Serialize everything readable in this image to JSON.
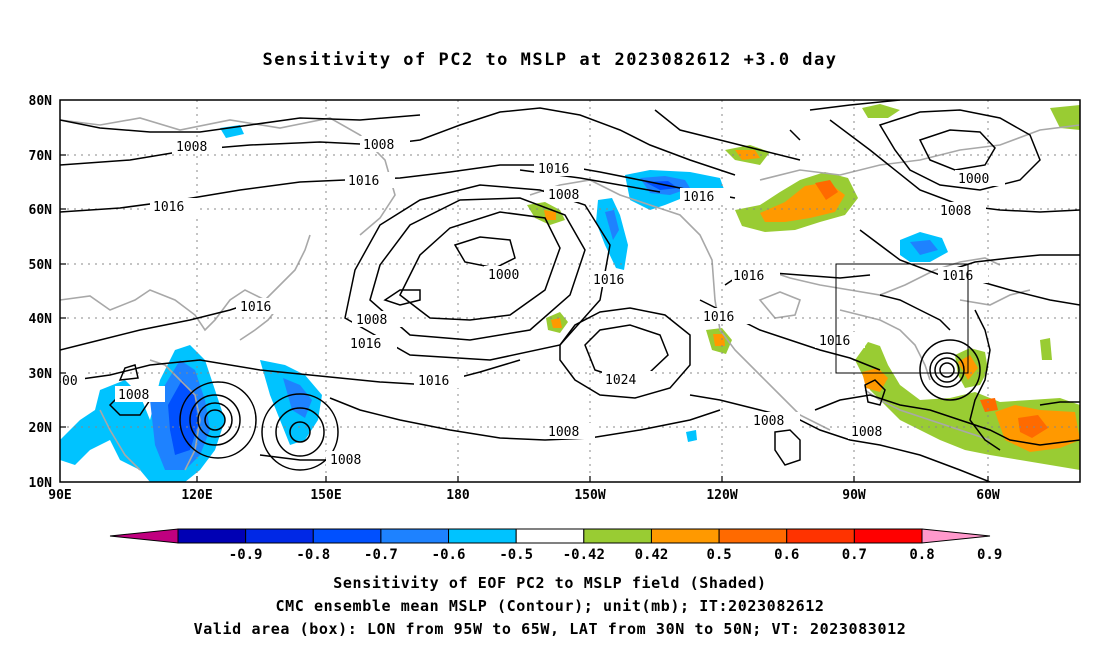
{
  "title": "Sensitivity of PC2 to MSLP at 2023082612 +3.0 day",
  "lat_ticks": [
    "80N",
    "70N",
    "60N",
    "50N",
    "40N",
    "30N",
    "20N",
    "10N"
  ],
  "lon_ticks": [
    "90E",
    "120E",
    "150E",
    "180",
    "150W",
    "120W",
    "90W",
    "60W"
  ],
  "colorbar": {
    "labels": [
      "-0.9",
      "-0.8",
      "-0.7",
      "-0.6",
      "-0.5",
      "-0.42",
      "0.42",
      "0.5",
      "0.6",
      "0.7",
      "0.8",
      "0.9"
    ],
    "colors": [
      "#c0007f",
      "#0000b4",
      "#0028e6",
      "#0050ff",
      "#1e82ff",
      "#00c3ff",
      "#ffffff",
      "#99cc33",
      "#ff9900",
      "#ff6a00",
      "#ff3300",
      "#ff0000",
      "#ff99cc"
    ]
  },
  "contour_labels": [
    {
      "text": "1008"
    },
    {
      "text": "1008"
    },
    {
      "text": "1016"
    },
    {
      "text": "1016"
    },
    {
      "text": "1016"
    },
    {
      "text": "1008"
    },
    {
      "text": "1016"
    },
    {
      "text": "1000"
    },
    {
      "text": "1008"
    },
    {
      "text": "1016"
    },
    {
      "text": "1008"
    },
    {
      "text": "1016"
    },
    {
      "text": "1016"
    },
    {
      "text": "1016"
    },
    {
      "text": "1000"
    },
    {
      "text": "1008"
    },
    {
      "text": "1016"
    },
    {
      "text": "1016"
    },
    {
      "text": "1024"
    },
    {
      "text": "1016"
    },
    {
      "text": "1008"
    },
    {
      "text": "1008"
    },
    {
      "text": "1008"
    },
    {
      "text": "1016"
    },
    {
      "text": "1008"
    },
    {
      "text": "00"
    }
  ],
  "valid_box": {
    "lon_from": "95W",
    "lon_to": "65W",
    "lat_from": "30N",
    "lat_to": "50N"
  },
  "captions": [
    "Sensitivity of EOF PC2 to MSLP field (Shaded)",
    "CMC ensemble mean MSLP (Contour); unit(mb); IT:2023082612",
    "Valid area (box): LON from 95W to 65W, LAT from 30N to 50N; VT: 2023083012"
  ]
}
